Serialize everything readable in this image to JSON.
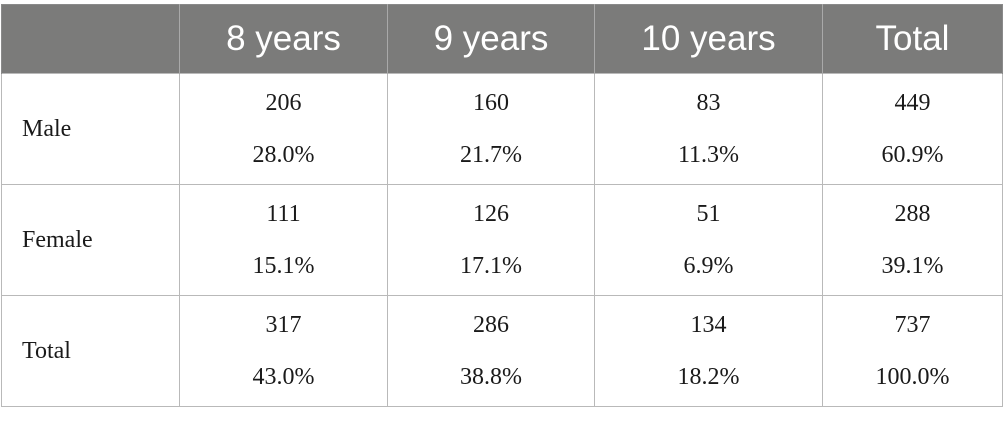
{
  "table": {
    "header": [
      "",
      "8 years",
      "9 years",
      "10 years",
      "Total"
    ],
    "rows": [
      {
        "label": "Male",
        "cells": [
          {
            "count": "206",
            "pct": "28.0%"
          },
          {
            "count": "160",
            "pct": "21.7%"
          },
          {
            "count": "83",
            "pct": "11.3%"
          },
          {
            "count": "449",
            "pct": "60.9%"
          }
        ]
      },
      {
        "label": "Female",
        "cells": [
          {
            "count": "111",
            "pct": "15.1%"
          },
          {
            "count": "126",
            "pct": "17.1%"
          },
          {
            "count": "51",
            "pct": "6.9%"
          },
          {
            "count": "288",
            "pct": "39.1%"
          }
        ]
      },
      {
        "label": "Total",
        "cells": [
          {
            "count": "317",
            "pct": "43.0%"
          },
          {
            "count": "286",
            "pct": "38.8%"
          },
          {
            "count": "134",
            "pct": "18.2%"
          },
          {
            "count": "737",
            "pct": "100.0%"
          }
        ]
      }
    ]
  },
  "colors": {
    "header_background": "#7b7b7a",
    "header_text": "#ffffff",
    "border": "#b9b9b9"
  }
}
